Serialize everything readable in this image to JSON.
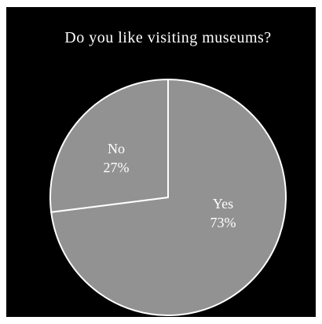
{
  "chart_data": {
    "type": "pie",
    "title": "Do you like visiting museums?",
    "slices": [
      {
        "label": "Yes",
        "value": 73,
        "value_text": "73%"
      },
      {
        "label": "No",
        "value": 27,
        "value_text": "27%"
      }
    ],
    "colors": {
      "background": "#000000",
      "slice": "#929292",
      "edge": "#ffffff",
      "text": "#ffffff"
    }
  }
}
